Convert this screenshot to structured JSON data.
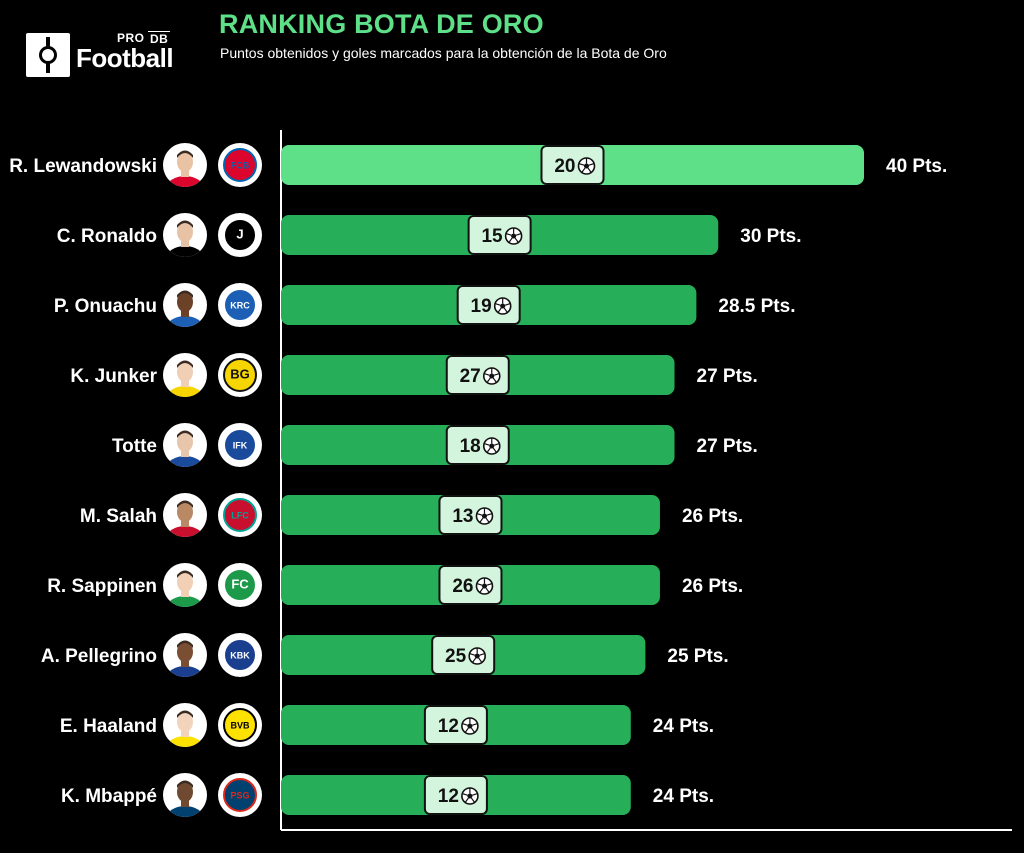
{
  "header": {
    "logo_pro": "PRO",
    "logo_db": "DB",
    "logo_word": "Football",
    "title": "RANKING BOTA DE ORO",
    "subtitle": "Puntos obtenidos y goles marcados para la obtención de la Bota de Oro"
  },
  "colors": {
    "background": "#000000",
    "title": "#5ee089",
    "bar_top": "#5ee089",
    "bar_other": "#27ae58",
    "goal_box": "#d4f5dd",
    "axis": "#ffffff"
  },
  "icons": {
    "goal": "football-icon",
    "player": "player-photo",
    "club": "club-crest"
  },
  "chart_data": {
    "type": "bar",
    "orientation": "horizontal",
    "title": "RANKING BOTA DE ORO",
    "subtitle": "Puntos obtenidos y goles marcados para la obtención de la Bota de Oro",
    "xlim": [
      0,
      40
    ],
    "grid": false,
    "legend": "none",
    "categories": [
      "R. Lewandowski",
      "C. Ronaldo",
      "P. Onuachu",
      "K. Junker",
      "Totte",
      "M. Salah",
      "R. Sappinen",
      "A. Pellegrino",
      "E. Haaland",
      "K. Mbappé"
    ],
    "series": [
      {
        "values": [
          40,
          30,
          28.5,
          27,
          27,
          26,
          26,
          25,
          24,
          24
        ]
      },
      {
        "values": [
          20,
          15,
          19,
          27,
          18,
          13,
          26,
          25,
          12,
          12
        ]
      }
    ],
    "point_labels": [
      "40 Pts.",
      "30 Pts.",
      "28.5 Pts.",
      "27 Pts.",
      "27 Pts.",
      "26 Pts.",
      "26 Pts.",
      "25 Pts.",
      "24 Pts.",
      "24 Pts."
    ],
    "clubs": [
      {
        "name": "Bayern München",
        "colors": [
          "#dc052d",
          "#0066b2"
        ],
        "mark": "FCB"
      },
      {
        "name": "Juventus",
        "colors": [
          "#000000",
          "#ffffff"
        ],
        "mark": "J"
      },
      {
        "name": "Genk",
        "colors": [
          "#1c5fb5",
          "#ffffff"
        ],
        "mark": "KRC"
      },
      {
        "name": "Bodø/Glimt",
        "colors": [
          "#f6d500",
          "#111111"
        ],
        "mark": "BG"
      },
      {
        "name": "Sarpsborg",
        "colors": [
          "#1a4a9c",
          "#ffffff"
        ],
        "mark": "IFK"
      },
      {
        "name": "Liverpool",
        "colors": [
          "#c8102e",
          "#00a398"
        ],
        "mark": "LFC"
      },
      {
        "name": "Flora",
        "colors": [
          "#1c9a4a",
          "#ffffff"
        ],
        "mark": "FC"
      },
      {
        "name": "Kristiansund",
        "colors": [
          "#1a3f8f",
          "#ffffff"
        ],
        "mark": "KBK"
      },
      {
        "name": "Dortmund",
        "colors": [
          "#fde100",
          "#000000"
        ],
        "mark": "BVB"
      },
      {
        "name": "PSG",
        "colors": [
          "#004170",
          "#da291c"
        ],
        "mark": "PSG"
      }
    ]
  }
}
